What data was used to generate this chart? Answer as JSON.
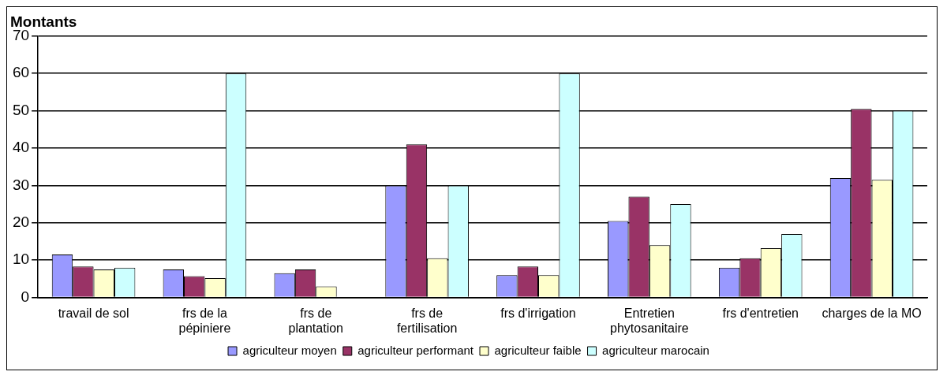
{
  "chart_data": {
    "type": "bar",
    "title": "Montants",
    "categories": [
      "travail de sol",
      "frs de la pépiniere",
      "frs de plantation",
      "frs de fertilisation",
      "frs d'irrigation",
      "Entretien phytosanitaire",
      "frs d'entretien",
      "charges de la MO"
    ],
    "series": [
      {
        "name": "agriculteur moyen",
        "color": "#9999ff",
        "values": [
          11.5,
          7.5,
          6.5,
          30,
          6,
          20.5,
          8,
          32
        ]
      },
      {
        "name": "agriculteur performant",
        "color": "#993366",
        "values": [
          8.3,
          5.7,
          7.5,
          41,
          8.3,
          27,
          10.5,
          50.5
        ]
      },
      {
        "name": "agriculteur faible",
        "color": "#ffffcc",
        "values": [
          7.5,
          5.2,
          3,
          10.5,
          6,
          14,
          13.2,
          31.5
        ]
      },
      {
        "name": "agriculteur marocain",
        "color": "#ccffff",
        "values": [
          8,
          60,
          null,
          30,
          60,
          25,
          17,
          50
        ]
      }
    ],
    "ylim": [
      0,
      70
    ],
    "yticks": [
      0,
      10,
      20,
      30,
      40,
      50,
      60,
      70
    ],
    "grid": "y",
    "legend": "bottom"
  }
}
